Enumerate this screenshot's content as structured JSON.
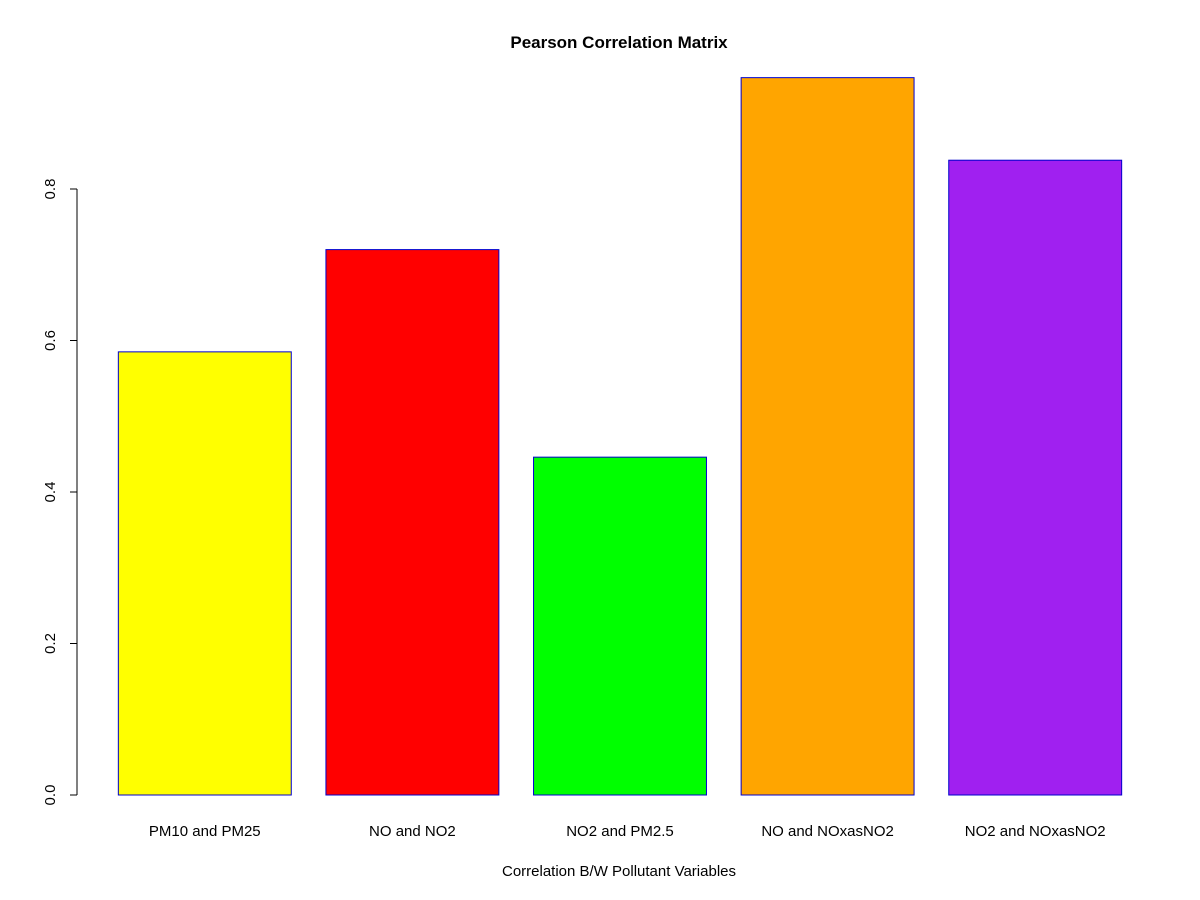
{
  "chart_data": {
    "type": "bar",
    "title": "Pearson Correlation Matrix",
    "xlabel": "Correlation B/W Pollutant Variables",
    "ylabel": "",
    "categories": [
      "PM10 and PM25",
      "NO and NO2",
      "NO2 and PM2.5",
      "NO and NOxasNO2",
      "NO2 and NOxasNO2"
    ],
    "values": [
      0.585,
      0.72,
      0.446,
      0.947,
      0.838
    ],
    "colors": [
      "#FFFF00",
      "#FF0000",
      "#00FF00",
      "#FFA500",
      "#A020F0"
    ],
    "border_color": "#0000CD",
    "ylim": [
      0,
      0.95
    ],
    "yticks": [
      "0.0",
      "0.2",
      "0.4",
      "0.6",
      "0.8"
    ],
    "grid": false,
    "legend": "none"
  }
}
